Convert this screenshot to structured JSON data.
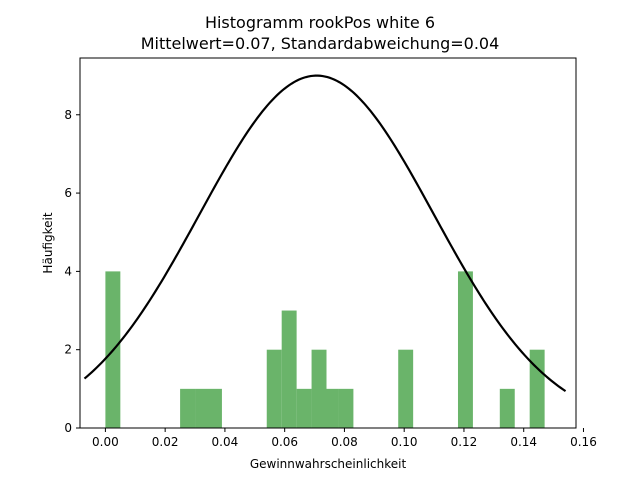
{
  "chart_data": {
    "type": "bar",
    "title_line1": "Histogramm rookPos white 6",
    "title_line2": "Mittelwert=0.07, Standardabweichung=0.04",
    "xlabel": "Gewinnwahrscheinlichkeit",
    "ylabel": "Häufigkeit",
    "xlim": [
      -0.0085,
      0.1575
    ],
    "ylim": [
      0,
      9.45
    ],
    "xticks": [
      0.0,
      0.02,
      0.04,
      0.06,
      0.08,
      0.1,
      0.12,
      0.14,
      0.16
    ],
    "xtick_labels": [
      "0.00",
      "0.02",
      "0.04",
      "0.06",
      "0.08",
      "0.10",
      "0.12",
      "0.14",
      "0.16"
    ],
    "yticks": [
      0,
      2,
      4,
      6,
      8
    ],
    "ytick_labels": [
      "0",
      "2",
      "4",
      "6",
      "8"
    ],
    "grid": false,
    "bar_color": "#6ab46a",
    "curve_color": "#000000",
    "bins": [
      {
        "x0": 0.0,
        "x1": 0.005,
        "count": 4
      },
      {
        "x0": 0.025,
        "x1": 0.03,
        "count": 1
      },
      {
        "x0": 0.03,
        "x1": 0.034,
        "count": 1
      },
      {
        "x0": 0.034,
        "x1": 0.039,
        "count": 1
      },
      {
        "x0": 0.054,
        "x1": 0.059,
        "count": 2
      },
      {
        "x0": 0.059,
        "x1": 0.064,
        "count": 3
      },
      {
        "x0": 0.064,
        "x1": 0.069,
        "count": 1
      },
      {
        "x0": 0.069,
        "x1": 0.074,
        "count": 2
      },
      {
        "x0": 0.074,
        "x1": 0.078,
        "count": 1
      },
      {
        "x0": 0.078,
        "x1": 0.083,
        "count": 1
      },
      {
        "x0": 0.098,
        "x1": 0.103,
        "count": 2
      },
      {
        "x0": 0.118,
        "x1": 0.123,
        "count": 4
      },
      {
        "x0": 0.132,
        "x1": 0.137,
        "count": 1
      },
      {
        "x0": 0.142,
        "x1": 0.147,
        "count": 2
      }
    ],
    "curve": {
      "type": "normal-pdf-scaled",
      "mean": 0.0707,
      "std": 0.0392,
      "peak": 9.0,
      "x_range": [
        -0.007,
        0.154
      ]
    }
  }
}
